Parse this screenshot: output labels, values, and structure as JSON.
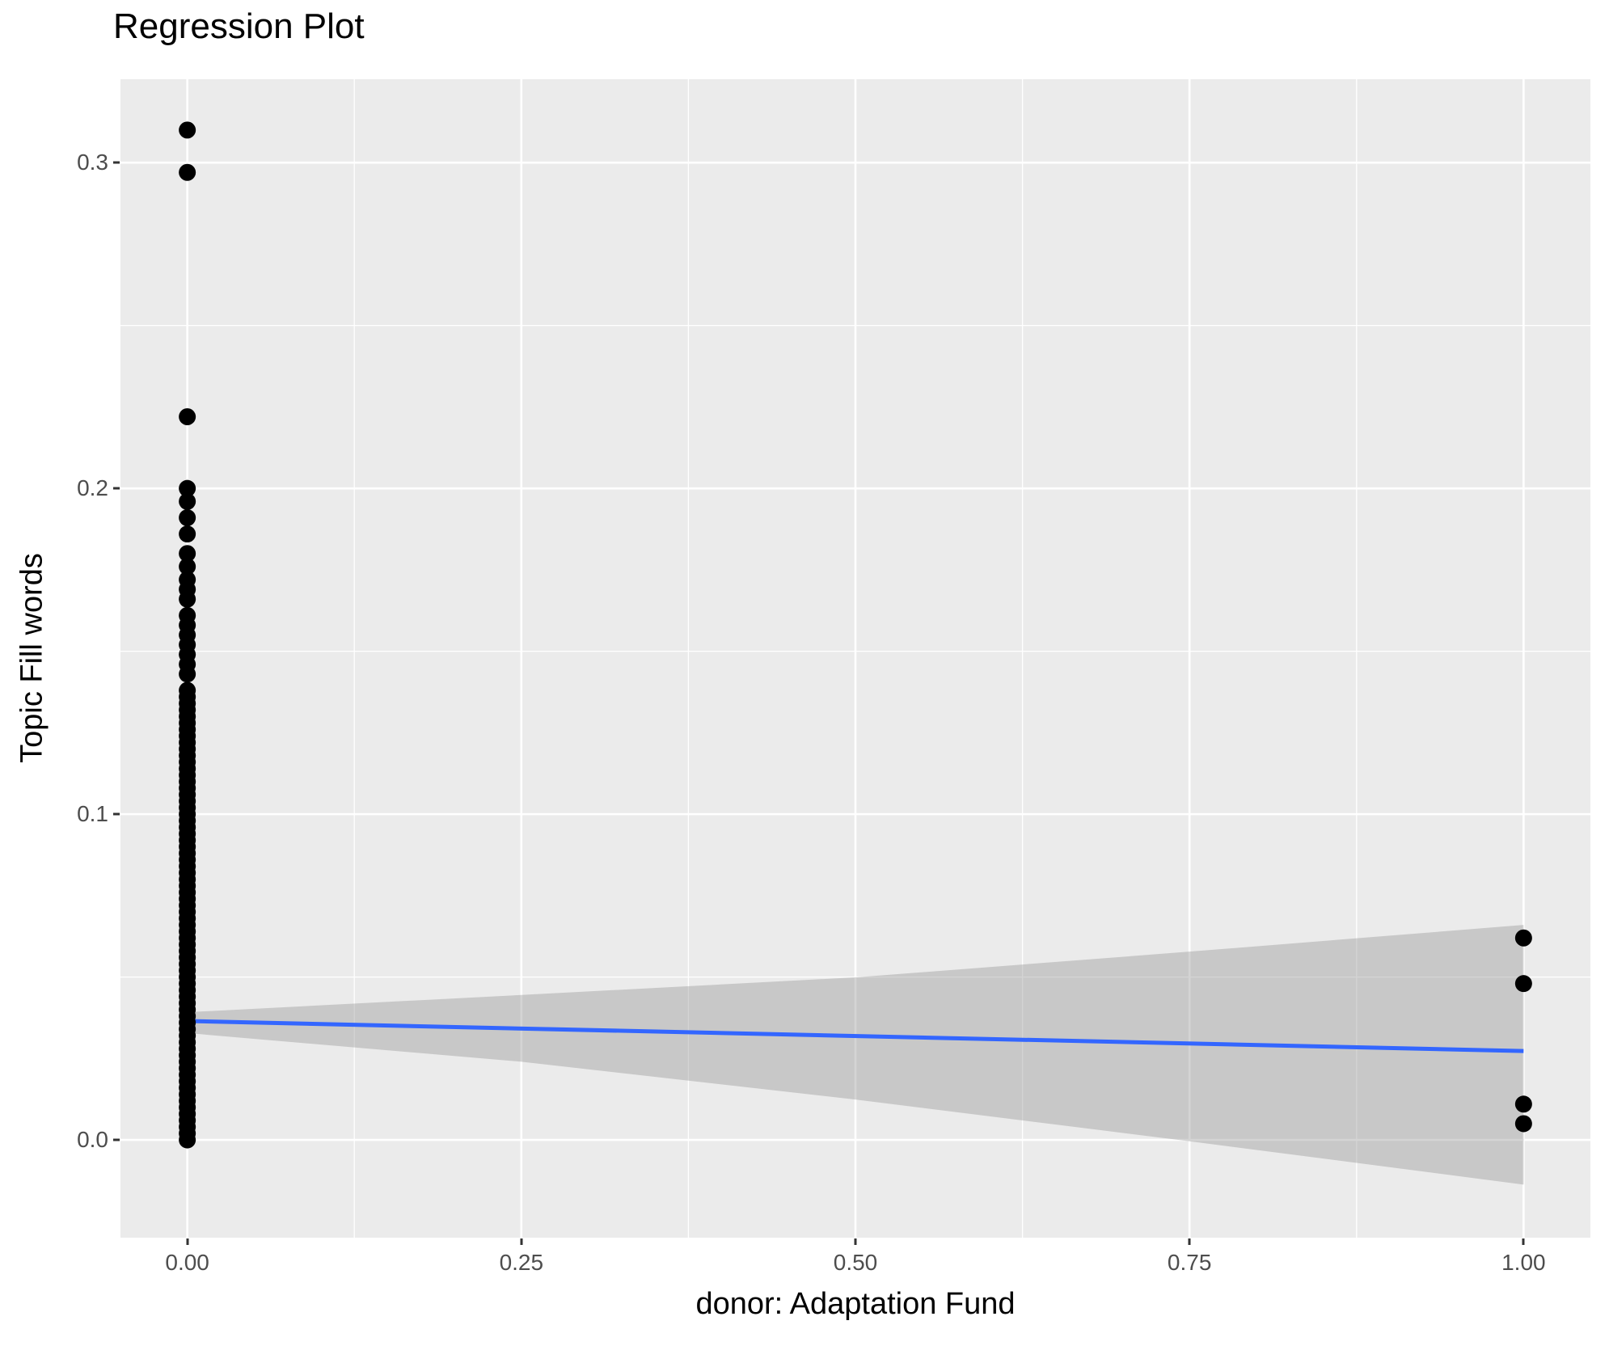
{
  "title": "Regression Plot",
  "chart_data": {
    "type": "scatter",
    "title": "Regression Plot",
    "xlabel": "donor: Adaptation Fund",
    "ylabel": "Topic Fill words",
    "xlim": [
      -0.05,
      1.05
    ],
    "ylim": [
      -0.03,
      0.3256
    ],
    "grid": "on",
    "legend": "none",
    "x_ticks": {
      "values": [
        0,
        0.25,
        0.5,
        0.75,
        1.0
      ],
      "labels": [
        "0.00",
        "0.25",
        "0.50",
        "0.75",
        "1.00"
      ]
    },
    "y_ticks": {
      "values": [
        0,
        0.1,
        0.2,
        0.3
      ],
      "labels": [
        "0.0",
        "0.1",
        "0.2",
        "0.3"
      ]
    },
    "x_minor_ticks": [
      0.125,
      0.375,
      0.625,
      0.875
    ],
    "y_minor_ticks": [
      0.05,
      0.15,
      0.25
    ],
    "series": [
      {
        "name": "observations at donor=0",
        "type": "points",
        "x": 0,
        "y": [
          0.31,
          0.297,
          0.222,
          0.2,
          0.196,
          0.191,
          0.186,
          0.18,
          0.176,
          0.172,
          0.169,
          0.166,
          0.161,
          0.158,
          0.155,
          0.152,
          0.149,
          0.146,
          0.143,
          0.138,
          0.136,
          0.134,
          0.132,
          0.13,
          0.128,
          0.126,
          0.124,
          0.122,
          0.12,
          0.118,
          0.116,
          0.114,
          0.112,
          0.11,
          0.108,
          0.106,
          0.104,
          0.102,
          0.1,
          0.098,
          0.096,
          0.094,
          0.092,
          0.09,
          0.088,
          0.086,
          0.084,
          0.082,
          0.08,
          0.078,
          0.076,
          0.074,
          0.072,
          0.07,
          0.068,
          0.066,
          0.064,
          0.062,
          0.06,
          0.058,
          0.056,
          0.054,
          0.052,
          0.05,
          0.048,
          0.046,
          0.044,
          0.042,
          0.04,
          0.038,
          0.036,
          0.034,
          0.032,
          0.03,
          0.028,
          0.026,
          0.024,
          0.022,
          0.02,
          0.018,
          0.016,
          0.014,
          0.012,
          0.01,
          0.008,
          0.006,
          0.004,
          0.002,
          0.0
        ]
      },
      {
        "name": "observations at donor=1",
        "type": "points",
        "x": 1,
        "y": [
          0.062,
          0.048,
          0.011,
          0.005
        ]
      },
      {
        "name": "regression line",
        "type": "line",
        "points": [
          [
            0,
            0.0365
          ],
          [
            1,
            0.0273
          ]
        ]
      },
      {
        "name": "confidence band",
        "type": "area",
        "x": [
          0,
          0.25,
          0.5,
          0.75,
          1.0
        ],
        "upper": [
          0.0392,
          0.0445,
          0.0499,
          0.0578,
          0.066
        ],
        "lower": [
          0.0328,
          0.024,
          0.0124,
          -0.0004,
          -0.0137
        ]
      }
    ],
    "colors": {
      "panel_bg": "#EBEBEB",
      "grid_major": "#FFFFFF",
      "grid_minor": "#FFFFFF",
      "point": "#000000",
      "smooth_line": "#3366FF",
      "ribbon": "rgba(153,153,153,0.42)",
      "tick_label": "#4D4D4D",
      "tick_mark": "#333333",
      "axis_title": "#000000",
      "title": "#000000"
    },
    "point_radius": 10.5,
    "line_width": 5
  }
}
